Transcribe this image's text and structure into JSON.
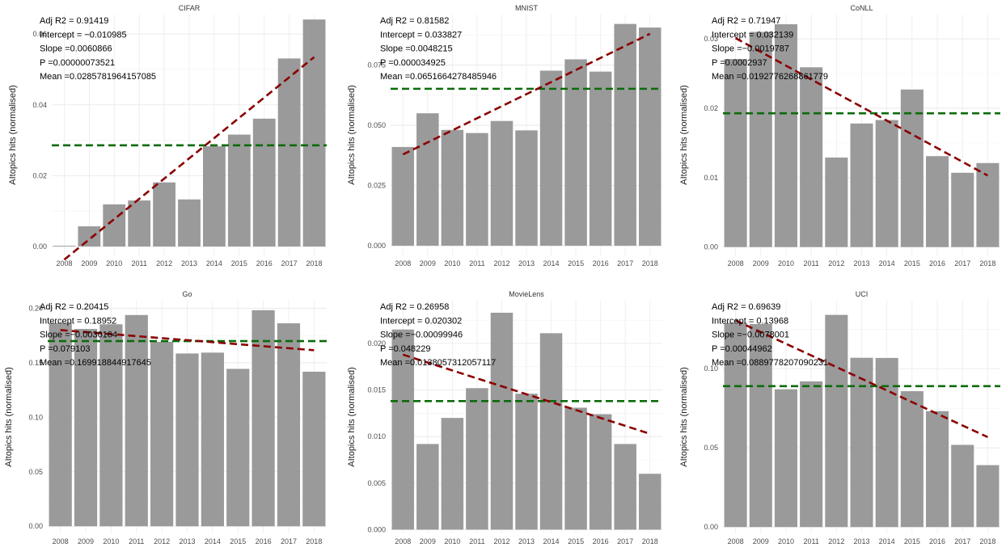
{
  "chart_data": [
    {
      "type": "bar",
      "title": "CIFAR",
      "ylabel": "AItopics hits (normalised)",
      "categories": [
        "2008",
        "2009",
        "2010",
        "2011",
        "2012",
        "2013",
        "2014",
        "2015",
        "2016",
        "2017",
        "2018"
      ],
      "values": [
        0.0002,
        0.0057,
        0.0119,
        0.013,
        0.0181,
        0.0133,
        0.0283,
        0.0316,
        0.0361,
        0.0531,
        0.0641
      ],
      "ylim": [
        -0.0025,
        0.0655
      ],
      "yticks": [
        0.0,
        0.02,
        0.04,
        0.06
      ],
      "ytick_labels": [
        "0.00",
        "0.02",
        "0.04",
        "0.06"
      ],
      "mean": 0.0285781964157085,
      "trend": [
        -0.0037,
        0.0535
      ],
      "stats": [
        "Adj R2 = 0.91419",
        "Intercept = −0.010985",
        "Slope =0.0060866",
        "P =0.00000073521",
        "Mean =0.0285781964157085"
      ]
    },
    {
      "type": "bar",
      "title": "MNIST",
      "ylabel": "AItopics hits (normalised)",
      "categories": [
        "2008",
        "2009",
        "2010",
        "2011",
        "2012",
        "2013",
        "2014",
        "2015",
        "2016",
        "2017",
        "2018"
      ],
      "values": [
        0.041,
        0.055,
        0.0481,
        0.0468,
        0.0518,
        0.0479,
        0.0727,
        0.0774,
        0.0723,
        0.0921,
        0.0906
      ],
      "ylim": [
        -0.004,
        0.096
      ],
      "yticks": [
        0.0,
        0.025,
        0.05,
        0.075
      ],
      "ytick_labels": [
        "0.000",
        "0.025",
        "0.050",
        "0.075"
      ],
      "mean": 0.0651664278485946,
      "trend": [
        0.0379,
        0.088
      ],
      "stats": [
        "Adj R2 = 0.81582",
        "Intercept = 0.033827",
        "Slope =0.0048215",
        "P =0.000034925",
        "Mean =0.0651664278485946"
      ]
    },
    {
      "type": "bar",
      "title": "CoNLL",
      "ylabel": "AItopics hits (normalised)",
      "categories": [
        "2008",
        "2009",
        "2010",
        "2011",
        "2012",
        "2013",
        "2014",
        "2015",
        "2016",
        "2017",
        "2018"
      ],
      "values": [
        0.0271,
        0.031,
        0.0321,
        0.0259,
        0.0129,
        0.0178,
        0.0183,
        0.0227,
        0.0131,
        0.0107,
        0.0121
      ],
      "ylim": [
        -0.0012,
        0.0335
      ],
      "yticks": [
        0.0,
        0.01,
        0.02,
        0.03
      ],
      "ytick_labels": [
        "0.00",
        "0.01",
        "0.02",
        "0.03"
      ],
      "mean": 0.0192776268861779,
      "trend": [
        0.0301,
        0.0103
      ],
      "stats": [
        "Adj R2 = 0.71947",
        "Intercept = 0.032139",
        "Slope =−0.0019787",
        "P =0.0002937",
        "Mean =0.0192776268861779"
      ]
    },
    {
      "type": "bar",
      "title": "Go",
      "ylabel": "AItopics hits (normalised)",
      "categories": [
        "2008",
        "2009",
        "2010",
        "2011",
        "2012",
        "2013",
        "2014",
        "2015",
        "2016",
        "2017",
        "2018"
      ],
      "values": [
        0.1866,
        0.181,
        0.1853,
        0.1938,
        0.1692,
        0.1585,
        0.1593,
        0.1444,
        0.1982,
        0.1862,
        0.1418
      ],
      "ylim": [
        -0.0065,
        0.207
      ],
      "yticks": [
        0.0,
        0.05,
        0.1,
        0.15,
        0.2
      ],
      "ytick_labels": [
        "0.00",
        "0.05",
        "0.10",
        "0.15",
        "0.20"
      ],
      "mean": 0.169918844917645,
      "trend": [
        0.18,
        0.1615
      ],
      "stats": [
        "Adj R2 = 0.20415",
        "Intercept = 0.18952",
        "Slope =−0.0030164",
        "P =0.079103",
        "Mean =0.169918844917645"
      ]
    },
    {
      "type": "bar",
      "title": "MovieLens",
      "ylabel": "AItopics hits (normalised)",
      "categories": [
        "2008",
        "2009",
        "2010",
        "2011",
        "2012",
        "2013",
        "2014",
        "2015",
        "2016",
        "2017",
        "2018"
      ],
      "values": [
        0.0215,
        0.0092,
        0.012,
        0.0152,
        0.0233,
        0.0146,
        0.0211,
        0.0131,
        0.0124,
        0.0092,
        0.006
      ],
      "ylim": [
        -0.0004,
        0.0246
      ],
      "yticks": [
        0.0,
        0.005,
        0.01,
        0.015,
        0.02
      ],
      "ytick_labels": [
        "0.000",
        "0.005",
        "0.010",
        "0.015",
        "0.020"
      ],
      "mean": 0.0138057312057117,
      "trend": [
        0.0188,
        0.0103
      ],
      "stats": [
        "Adj R2 = 0.26958",
        "Intercept = 0.020302",
        "Slope =−0.00099946",
        "P =0.048229",
        "Mean =0.0138057312057117"
      ]
    },
    {
      "type": "bar",
      "title": "UCI",
      "ylabel": "AItopics hits (normalised)",
      "categories": [
        "2008",
        "2009",
        "2010",
        "2011",
        "2012",
        "2013",
        "2014",
        "2015",
        "2016",
        "2017",
        "2018"
      ],
      "values": [
        0.129,
        0.1282,
        0.087,
        0.092,
        0.134,
        0.1069,
        0.1068,
        0.0858,
        0.0732,
        0.0519,
        0.0391
      ],
      "ylim": [
        -0.004,
        0.143
      ],
      "yticks": [
        0.0,
        0.05,
        0.1
      ],
      "ytick_labels": [
        "0.00",
        "0.05",
        "0.10"
      ],
      "mean": 0.0889778207090231,
      "trend": [
        0.1305,
        0.0568
      ],
      "stats": [
        "Adj R2 = 0.69639",
        "Intercept = 0.13968",
        "Slope =−0.0078001",
        "P =0.00044962",
        "Mean =0.0889778207090231"
      ]
    }
  ]
}
